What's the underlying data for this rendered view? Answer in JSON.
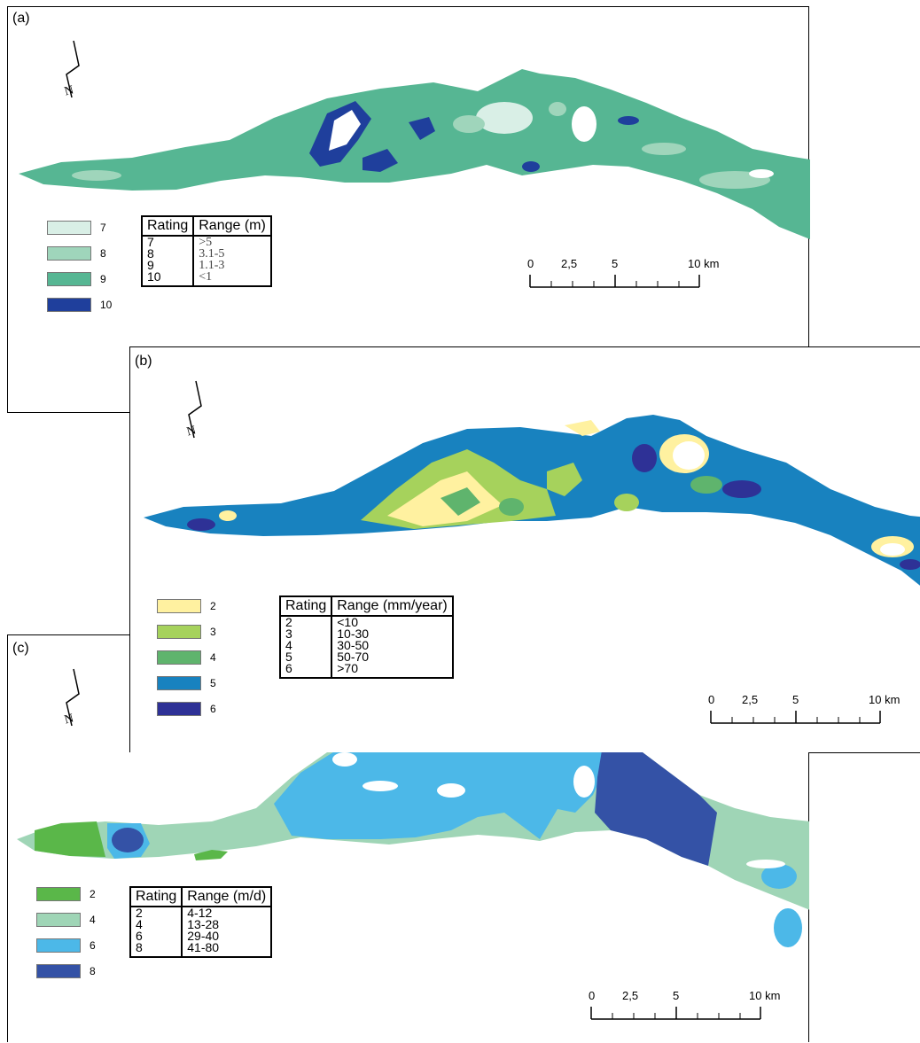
{
  "panels": [
    {
      "label": "(a)",
      "table": {
        "headers": [
          "Rating",
          "Range (m)"
        ],
        "rows": [
          [
            "7",
            ">5"
          ],
          [
            "8",
            "3.1-5"
          ],
          [
            "9",
            "1.1-3"
          ],
          [
            "10",
            "<1"
          ]
        ]
      },
      "legend": [
        {
          "value": "7",
          "color": "#d9efe6"
        },
        {
          "value": "8",
          "color": "#9fd5bb"
        },
        {
          "value": "9",
          "color": "#56b693"
        },
        {
          "value": "10",
          "color": "#1f3f9c"
        }
      ],
      "scale_labels": [
        "0",
        "2,5",
        "5",
        "10 km"
      ]
    },
    {
      "label": "(b)",
      "table": {
        "headers": [
          "Rating",
          "Range (mm/year)"
        ],
        "rows": [
          [
            "2",
            "<10"
          ],
          [
            "3",
            "10-30"
          ],
          [
            "4",
            "30-50"
          ],
          [
            "5",
            "50-70"
          ],
          [
            "6",
            ">70"
          ]
        ]
      },
      "legend": [
        {
          "value": "2",
          "color": "#fff1a0"
        },
        {
          "value": "3",
          "color": "#a6d25c"
        },
        {
          "value": "4",
          "color": "#5fb46d"
        },
        {
          "value": "5",
          "color": "#1882bf"
        },
        {
          "value": "6",
          "color": "#2e3196"
        }
      ],
      "scale_labels": [
        "0",
        "2,5",
        "5",
        "10 km"
      ]
    },
    {
      "label": "(c)",
      "table": {
        "headers": [
          "Rating",
          "Range (m/d)"
        ],
        "rows": [
          [
            "2",
            "4-12"
          ],
          [
            "4",
            "13-28"
          ],
          [
            "6",
            "29-40"
          ],
          [
            "8",
            "41-80"
          ]
        ]
      },
      "legend": [
        {
          "value": "2",
          "color": "#5ab749"
        },
        {
          "value": "4",
          "color": "#9fd5b6"
        },
        {
          "value": "6",
          "color": "#4cb8e8"
        },
        {
          "value": "8",
          "color": "#3452a6"
        }
      ],
      "scale_labels": [
        "0",
        "2,5",
        "5",
        "10 km"
      ]
    }
  ]
}
